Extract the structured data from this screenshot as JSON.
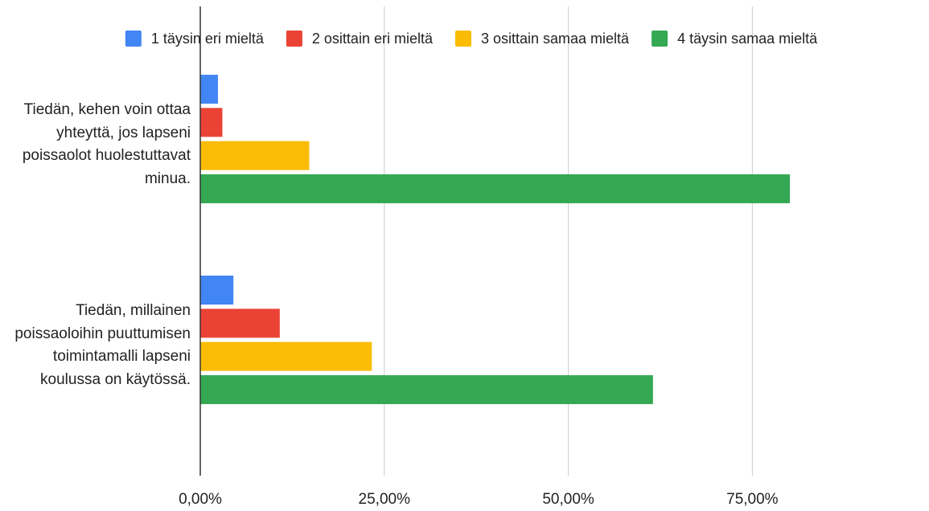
{
  "chart_data": {
    "type": "hbar",
    "categories": [
      "Tiedän, kehen voin ottaa yhteyttä, jos lapseni poissaolot huolestuttavat minua.",
      "Tiedän, millainen poissaoloihin puuttumisen toimintamalli lapseni koulussa on käytössä."
    ],
    "series": [
      {
        "name": "1 täysin eri mieltä",
        "color": "#4285f4",
        "values": [
          2.4,
          4.5
        ]
      },
      {
        "name": "2 osittain eri mieltä",
        "color": "#ea4335",
        "values": [
          3.0,
          10.8
        ]
      },
      {
        "name": "3 osittain samaa mieltä",
        "color": "#fbbc04",
        "values": [
          14.8,
          23.3
        ]
      },
      {
        "name": "4 täysin samaa mieltä",
        "color": "#34a853",
        "values": [
          80.1,
          61.5
        ]
      }
    ],
    "xlim": [
      0,
      99
    ],
    "xticks": [
      {
        "value": 0,
        "label": "0,00%"
      },
      {
        "value": 25,
        "label": "25,00%"
      },
      {
        "value": 50,
        "label": "50,00%"
      },
      {
        "value": 75,
        "label": "75,00%"
      }
    ],
    "grid": true,
    "legend": "top"
  }
}
